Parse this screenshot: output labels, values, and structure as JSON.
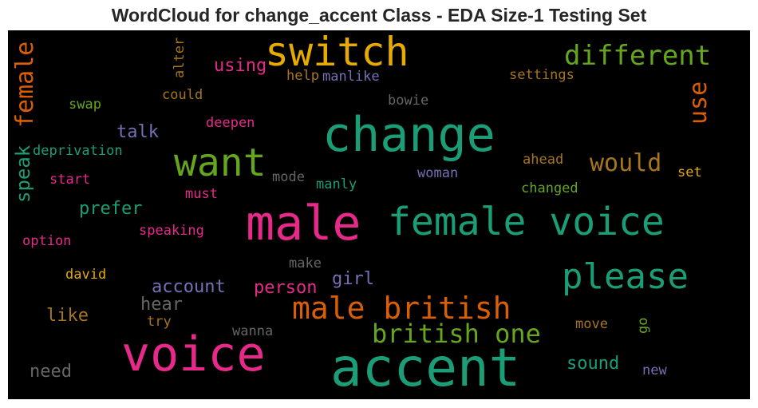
{
  "chart_data": {
    "type": "wordcloud",
    "title": "WordCloud for change_accent Class - EDA Size-1 Testing Set",
    "background": "#000000",
    "colors": {
      "teal": "#1b9e77",
      "orange": "#d95f02",
      "purple": "#7570b3",
      "pink": "#e7298a",
      "green": "#66a61e",
      "yellow": "#e6ab02",
      "brown": "#a6761d",
      "gray": "#666666"
    },
    "words": [
      {
        "text": "accent",
        "color": "#1b9e77",
        "vertical": false
      },
      {
        "text": "change",
        "color": "#1b9e77",
        "vertical": false
      },
      {
        "text": "voice",
        "color": "#e7298a",
        "vertical": false
      },
      {
        "text": "male",
        "color": "#e7298a",
        "vertical": false
      },
      {
        "text": "female voice",
        "color": "#1b9e77",
        "vertical": false
      },
      {
        "text": "switch",
        "color": "#e6ab02",
        "vertical": false
      },
      {
        "text": "want",
        "color": "#66a61e",
        "vertical": false
      },
      {
        "text": "male british",
        "color": "#d95f02",
        "vertical": false
      },
      {
        "text": "please",
        "color": "#1b9e77",
        "vertical": false
      },
      {
        "text": "different",
        "color": "#66a61e",
        "vertical": false
      },
      {
        "text": "british one",
        "color": "#66a61e",
        "vertical": false
      },
      {
        "text": "female",
        "color": "#d95f02",
        "vertical": true
      },
      {
        "text": "would",
        "color": "#a6761d",
        "vertical": false
      },
      {
        "text": "use",
        "color": "#d95f02",
        "vertical": true
      },
      {
        "text": "speak",
        "color": "#1b9e77",
        "vertical": true
      },
      {
        "text": "talk",
        "color": "#7570b3",
        "vertical": false
      },
      {
        "text": "account",
        "color": "#7570b3",
        "vertical": false
      },
      {
        "text": "prefer",
        "color": "#1b9e77",
        "vertical": false
      },
      {
        "text": "person",
        "color": "#e7298a",
        "vertical": false
      },
      {
        "text": "girl",
        "color": "#7570b3",
        "vertical": false
      },
      {
        "text": "hear",
        "color": "#666666",
        "vertical": false
      },
      {
        "text": "like",
        "color": "#a6761d",
        "vertical": false
      },
      {
        "text": "need",
        "color": "#666666",
        "vertical": false
      },
      {
        "text": "sound",
        "color": "#1b9e77",
        "vertical": false
      },
      {
        "text": "using",
        "color": "#e7298a",
        "vertical": false
      },
      {
        "text": "deprivation",
        "color": "#1b9e77",
        "vertical": false
      },
      {
        "text": "deepen",
        "color": "#e7298a",
        "vertical": false
      },
      {
        "text": "swap",
        "color": "#66a61e",
        "vertical": false
      },
      {
        "text": "could",
        "color": "#a6761d",
        "vertical": false
      },
      {
        "text": "alter",
        "color": "#a6761d",
        "vertical": true
      },
      {
        "text": "help",
        "color": "#a6761d",
        "vertical": false
      },
      {
        "text": "manlike",
        "color": "#7570b3",
        "vertical": false
      },
      {
        "text": "settings",
        "color": "#a6761d",
        "vertical": false
      },
      {
        "text": "bowie",
        "color": "#666666",
        "vertical": false
      },
      {
        "text": "ahead",
        "color": "#a6761d",
        "vertical": false
      },
      {
        "text": "set",
        "color": "#e6ab02",
        "vertical": false
      },
      {
        "text": "changed",
        "color": "#66a61e",
        "vertical": false
      },
      {
        "text": "woman",
        "color": "#7570b3",
        "vertical": false
      },
      {
        "text": "mode",
        "color": "#666666",
        "vertical": false
      },
      {
        "text": "manly",
        "color": "#1b9e77",
        "vertical": false
      },
      {
        "text": "start",
        "color": "#e7298a",
        "vertical": false
      },
      {
        "text": "must",
        "color": "#e7298a",
        "vertical": false
      },
      {
        "text": "speaking",
        "color": "#e7298a",
        "vertical": false
      },
      {
        "text": "option",
        "color": "#e7298a",
        "vertical": false
      },
      {
        "text": "make",
        "color": "#666666",
        "vertical": false
      },
      {
        "text": "david",
        "color": "#e6ab02",
        "vertical": false
      },
      {
        "text": "try",
        "color": "#a6761d",
        "vertical": false
      },
      {
        "text": "wanna",
        "color": "#666666",
        "vertical": false
      },
      {
        "text": "move",
        "color": "#a6761d",
        "vertical": false
      },
      {
        "text": "go",
        "color": "#66a61e",
        "vertical": true
      },
      {
        "text": "new",
        "color": "#7570b3",
        "vertical": false
      }
    ]
  }
}
